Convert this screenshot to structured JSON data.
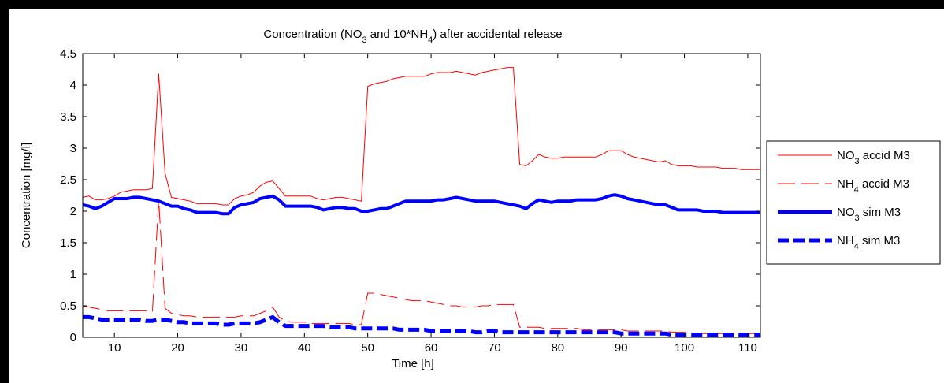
{
  "chart_data": {
    "type": "line",
    "title": {
      "parts": [
        {
          "text": "Concentration (NO"
        },
        {
          "text": "3",
          "sub": true
        },
        {
          "text": " and 10*NH"
        },
        {
          "text": "4",
          "sub": true
        },
        {
          "text": ") after accidental release"
        }
      ]
    },
    "xlabel": "Time [h]",
    "ylabel": "Concentration [mg/l]",
    "xlim": [
      5,
      112
    ],
    "ylim": [
      0,
      4.5
    ],
    "xticks": [
      10,
      20,
      30,
      40,
      50,
      60,
      70,
      80,
      90,
      100,
      110
    ],
    "yticks": [
      0,
      0.5,
      1,
      1.5,
      2,
      2.5,
      3,
      3.5,
      4,
      4.5
    ],
    "ytick_labels": [
      "0",
      "0.5",
      "1",
      "1.5",
      "2",
      "2.5",
      "3",
      "3.5",
      "4",
      "4.5"
    ],
    "grid": false,
    "legend_position": "outside-right",
    "series": [
      {
        "name_parts": [
          {
            "text": "NO"
          },
          {
            "text": "3",
            "sub": true
          },
          {
            "text": " accid M3"
          }
        ],
        "color": "#ff0000",
        "style": "solid",
        "width": 1,
        "x": [
          5,
          6,
          7,
          8,
          9,
          10,
          11,
          12,
          13,
          14,
          15,
          16,
          17,
          18,
          19,
          20,
          21,
          22,
          23,
          24,
          25,
          26,
          27,
          28,
          29,
          30,
          31,
          32,
          33,
          34,
          35,
          36,
          37,
          38,
          39,
          40,
          41,
          42,
          43,
          44,
          45,
          46,
          47,
          48,
          49,
          50,
          51,
          52,
          53,
          54,
          55,
          56,
          57,
          58,
          59,
          60,
          61,
          62,
          63,
          64,
          65,
          66,
          67,
          68,
          69,
          70,
          71,
          72,
          73,
          74,
          75,
          76,
          77,
          78,
          79,
          80,
          81,
          82,
          83,
          84,
          85,
          86,
          87,
          88,
          89,
          90,
          91,
          92,
          93,
          94,
          95,
          96,
          97,
          98,
          99,
          100,
          101,
          102,
          103,
          104,
          105,
          106,
          107,
          108,
          109,
          110,
          111,
          112
        ],
        "y": [
          2.22,
          2.24,
          2.18,
          2.18,
          2.2,
          2.24,
          2.3,
          2.32,
          2.34,
          2.34,
          2.34,
          2.36,
          4.18,
          2.6,
          2.22,
          2.2,
          2.18,
          2.16,
          2.12,
          2.12,
          2.12,
          2.12,
          2.1,
          2.1,
          2.2,
          2.24,
          2.26,
          2.3,
          2.4,
          2.46,
          2.48,
          2.36,
          2.24,
          2.24,
          2.24,
          2.24,
          2.24,
          2.2,
          2.18,
          2.2,
          2.22,
          2.22,
          2.2,
          2.18,
          2.16,
          3.98,
          4.02,
          4.04,
          4.06,
          4.1,
          4.12,
          4.14,
          4.14,
          4.14,
          4.14,
          4.18,
          4.2,
          4.2,
          4.2,
          4.22,
          4.2,
          4.18,
          4.16,
          4.2,
          4.22,
          4.24,
          4.26,
          4.28,
          4.28,
          2.74,
          2.72,
          2.8,
          2.9,
          2.86,
          2.84,
          2.84,
          2.86,
          2.86,
          2.86,
          2.86,
          2.86,
          2.86,
          2.9,
          2.96,
          2.96,
          2.96,
          2.9,
          2.86,
          2.84,
          2.82,
          2.8,
          2.78,
          2.8,
          2.74,
          2.72,
          2.72,
          2.72,
          2.7,
          2.7,
          2.7,
          2.7,
          2.68,
          2.68,
          2.68,
          2.66,
          2.66,
          2.66,
          2.66
        ]
      },
      {
        "name_parts": [
          {
            "text": "NH"
          },
          {
            "text": "4",
            "sub": true
          },
          {
            "text": " accid M3"
          }
        ],
        "color": "#ff0000",
        "style": "dashed",
        "width": 1,
        "x": [
          5,
          6,
          7,
          8,
          9,
          10,
          11,
          12,
          13,
          14,
          15,
          16,
          17,
          18,
          19,
          20,
          21,
          22,
          23,
          24,
          25,
          26,
          27,
          28,
          29,
          30,
          31,
          32,
          33,
          34,
          35,
          36,
          37,
          38,
          39,
          40,
          41,
          42,
          43,
          44,
          45,
          46,
          47,
          48,
          49,
          50,
          51,
          52,
          53,
          54,
          55,
          56,
          57,
          58,
          59,
          60,
          61,
          62,
          63,
          64,
          65,
          66,
          67,
          68,
          69,
          70,
          71,
          72,
          73,
          74,
          75,
          76,
          77,
          78,
          79,
          80,
          81,
          82,
          83,
          84,
          85,
          86,
          87,
          88,
          89,
          90,
          91,
          92,
          93,
          94,
          95,
          96,
          97,
          98,
          99,
          100,
          101,
          102,
          103,
          104,
          105,
          106,
          107,
          108,
          109,
          110,
          111,
          112
        ],
        "y": [
          0.5,
          0.48,
          0.46,
          0.44,
          0.42,
          0.42,
          0.42,
          0.42,
          0.42,
          0.42,
          0.42,
          0.4,
          2.18,
          0.46,
          0.38,
          0.36,
          0.34,
          0.34,
          0.32,
          0.32,
          0.32,
          0.32,
          0.32,
          0.32,
          0.32,
          0.34,
          0.34,
          0.34,
          0.38,
          0.42,
          0.48,
          0.32,
          0.26,
          0.24,
          0.24,
          0.24,
          0.22,
          0.22,
          0.22,
          0.22,
          0.22,
          0.22,
          0.22,
          0.2,
          0.2,
          0.7,
          0.7,
          0.68,
          0.66,
          0.64,
          0.62,
          0.6,
          0.58,
          0.58,
          0.58,
          0.56,
          0.54,
          0.52,
          0.5,
          0.5,
          0.48,
          0.48,
          0.48,
          0.5,
          0.5,
          0.52,
          0.52,
          0.52,
          0.52,
          0.16,
          0.16,
          0.16,
          0.16,
          0.14,
          0.14,
          0.14,
          0.14,
          0.14,
          0.14,
          0.12,
          0.12,
          0.12,
          0.12,
          0.12,
          0.12,
          0.12,
          0.1,
          0.1,
          0.1,
          0.1,
          0.1,
          0.1,
          0.1,
          0.08,
          0.08,
          0.08,
          0.06,
          0.06,
          0.06,
          0.06,
          0.06,
          0.06,
          0.06,
          0.06,
          0.06,
          0.06,
          0.06,
          0.06
        ]
      },
      {
        "name_parts": [
          {
            "text": "NO"
          },
          {
            "text": "3",
            "sub": true
          },
          {
            "text": " sim M3"
          }
        ],
        "color": "#0000ff",
        "style": "solid",
        "width": 4,
        "x": [
          5,
          6,
          7,
          8,
          9,
          10,
          11,
          12,
          13,
          14,
          15,
          16,
          17,
          18,
          19,
          20,
          21,
          22,
          23,
          24,
          25,
          26,
          27,
          28,
          29,
          30,
          31,
          32,
          33,
          34,
          35,
          36,
          37,
          38,
          39,
          40,
          41,
          42,
          43,
          44,
          45,
          46,
          47,
          48,
          49,
          50,
          51,
          52,
          53,
          54,
          55,
          56,
          57,
          58,
          59,
          60,
          61,
          62,
          63,
          64,
          65,
          66,
          67,
          68,
          69,
          70,
          71,
          72,
          73,
          74,
          75,
          76,
          77,
          78,
          79,
          80,
          81,
          82,
          83,
          84,
          85,
          86,
          87,
          88,
          89,
          90,
          91,
          92,
          93,
          94,
          95,
          96,
          97,
          98,
          99,
          100,
          101,
          102,
          103,
          104,
          105,
          106,
          107,
          108,
          109,
          110,
          111,
          112
        ],
        "y": [
          2.1,
          2.08,
          2.04,
          2.08,
          2.14,
          2.2,
          2.2,
          2.2,
          2.22,
          2.22,
          2.2,
          2.18,
          2.16,
          2.12,
          2.08,
          2.08,
          2.04,
          2.02,
          1.98,
          1.98,
          1.98,
          1.98,
          1.96,
          1.96,
          2.06,
          2.1,
          2.12,
          2.14,
          2.2,
          2.22,
          2.24,
          2.18,
          2.08,
          2.08,
          2.08,
          2.08,
          2.08,
          2.06,
          2.02,
          2.04,
          2.06,
          2.06,
          2.04,
          2.04,
          2.0,
          2.0,
          2.02,
          2.04,
          2.04,
          2.08,
          2.12,
          2.16,
          2.16,
          2.16,
          2.16,
          2.16,
          2.18,
          2.18,
          2.2,
          2.22,
          2.2,
          2.18,
          2.16,
          2.16,
          2.16,
          2.16,
          2.14,
          2.12,
          2.1,
          2.08,
          2.04,
          2.12,
          2.18,
          2.16,
          2.14,
          2.16,
          2.16,
          2.16,
          2.18,
          2.18,
          2.18,
          2.18,
          2.2,
          2.24,
          2.26,
          2.24,
          2.2,
          2.18,
          2.16,
          2.14,
          2.12,
          2.1,
          2.1,
          2.06,
          2.02,
          2.02,
          2.02,
          2.02,
          2.0,
          2.0,
          2.0,
          1.98,
          1.98,
          1.98,
          1.98,
          1.98,
          1.98,
          1.98
        ]
      },
      {
        "name_parts": [
          {
            "text": "NH"
          },
          {
            "text": "4",
            "sub": true
          },
          {
            "text": " sim M3"
          }
        ],
        "color": "#0000ff",
        "style": "dashed",
        "width": 5,
        "x": [
          5,
          6,
          7,
          8,
          9,
          10,
          11,
          12,
          13,
          14,
          15,
          16,
          17,
          18,
          19,
          20,
          21,
          22,
          23,
          24,
          25,
          26,
          27,
          28,
          29,
          30,
          31,
          32,
          33,
          34,
          35,
          36,
          37,
          38,
          39,
          40,
          41,
          42,
          43,
          44,
          45,
          46,
          47,
          48,
          49,
          50,
          51,
          52,
          53,
          54,
          55,
          56,
          57,
          58,
          59,
          60,
          61,
          62,
          63,
          64,
          65,
          66,
          67,
          68,
          69,
          70,
          71,
          72,
          73,
          74,
          75,
          76,
          77,
          78,
          79,
          80,
          81,
          82,
          83,
          84,
          85,
          86,
          87,
          88,
          89,
          90,
          91,
          92,
          93,
          94,
          95,
          96,
          97,
          98,
          99,
          100,
          101,
          102,
          103,
          104,
          105,
          106,
          107,
          108,
          109,
          110,
          111,
          112
        ],
        "y": [
          0.32,
          0.32,
          0.3,
          0.28,
          0.28,
          0.28,
          0.28,
          0.28,
          0.28,
          0.28,
          0.26,
          0.26,
          0.28,
          0.28,
          0.26,
          0.24,
          0.24,
          0.22,
          0.22,
          0.22,
          0.22,
          0.22,
          0.2,
          0.2,
          0.22,
          0.22,
          0.22,
          0.22,
          0.24,
          0.28,
          0.32,
          0.24,
          0.18,
          0.18,
          0.18,
          0.18,
          0.18,
          0.18,
          0.18,
          0.16,
          0.16,
          0.16,
          0.16,
          0.14,
          0.14,
          0.14,
          0.14,
          0.14,
          0.14,
          0.14,
          0.12,
          0.12,
          0.12,
          0.12,
          0.12,
          0.1,
          0.1,
          0.1,
          0.1,
          0.1,
          0.1,
          0.1,
          0.08,
          0.08,
          0.1,
          0.1,
          0.08,
          0.08,
          0.08,
          0.08,
          0.08,
          0.08,
          0.08,
          0.08,
          0.08,
          0.08,
          0.08,
          0.08,
          0.08,
          0.08,
          0.08,
          0.08,
          0.08,
          0.08,
          0.08,
          0.06,
          0.06,
          0.06,
          0.06,
          0.06,
          0.06,
          0.06,
          0.06,
          0.04,
          0.04,
          0.04,
          0.04,
          0.04,
          0.04,
          0.04,
          0.04,
          0.04,
          0.04,
          0.04,
          0.04,
          0.04,
          0.04,
          0.04
        ]
      }
    ]
  }
}
